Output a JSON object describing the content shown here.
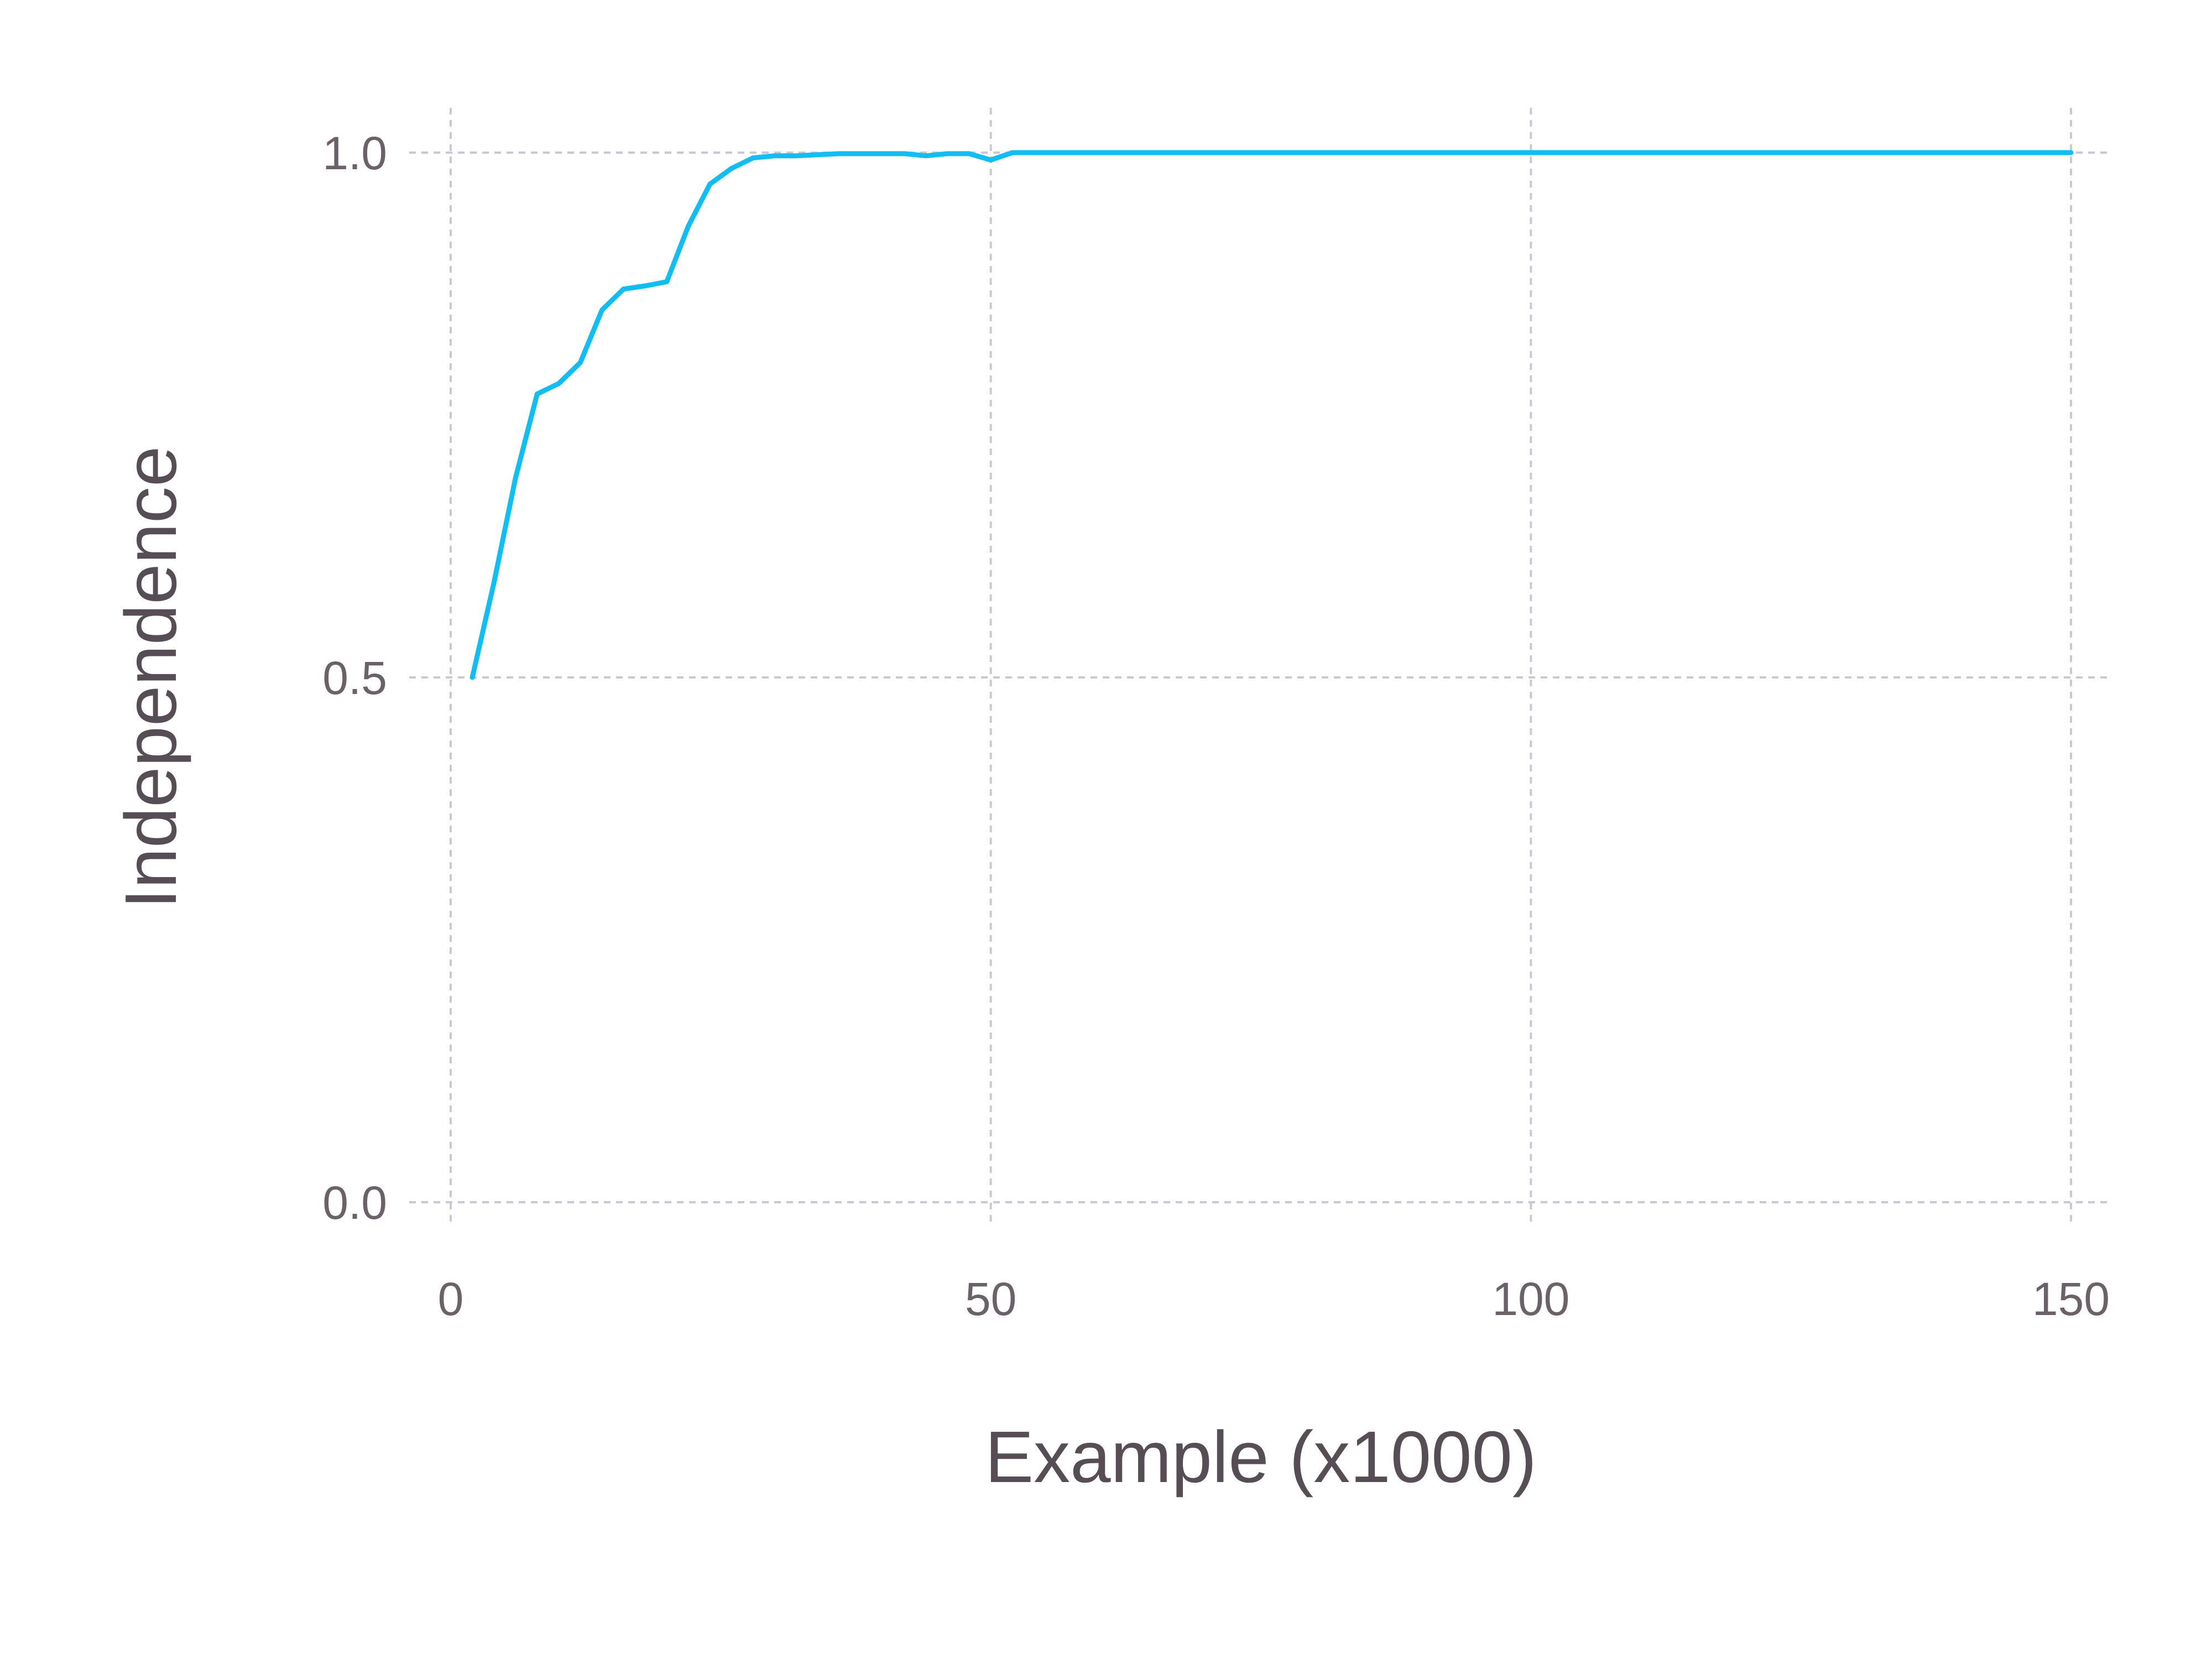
{
  "chart_data": {
    "type": "line",
    "title": "",
    "xlabel": "Example (x1000)",
    "ylabel": "Independence",
    "xlim": [
      0,
      150
    ],
    "ylim": [
      0,
      1
    ],
    "x_ticks": [
      0,
      50,
      100,
      150
    ],
    "y_ticks": [
      0.0,
      0.5,
      1.0
    ],
    "x_tick_labels": [
      "0",
      "50",
      "100",
      "150"
    ],
    "y_tick_labels": [
      "0.0",
      "0.5",
      "1.0"
    ],
    "grid": true,
    "legend": "none",
    "colors": {
      "series": "#12bdf2",
      "grid": "#c9c9d6",
      "tick_text": "#6b6169",
      "axis_title": "#574d55"
    },
    "series": [
      {
        "x": [
          2,
          4,
          6,
          8,
          10,
          12,
          14,
          16,
          18,
          20,
          22,
          24,
          26,
          28,
          30,
          32,
          34,
          36,
          38,
          40,
          42,
          44,
          46,
          48,
          50,
          52,
          54,
          56,
          58,
          60,
          70,
          80,
          90,
          100,
          110,
          120,
          130,
          140,
          150
        ],
        "y": [
          0.5,
          0.59,
          0.69,
          0.77,
          0.78,
          0.8,
          0.85,
          0.87,
          0.873,
          0.877,
          0.93,
          0.97,
          0.985,
          0.995,
          0.997,
          0.997,
          0.998,
          0.999,
          0.999,
          0.999,
          0.999,
          0.997,
          0.999,
          0.999,
          0.993,
          1.0,
          1.0,
          1.0,
          1.0,
          1.0,
          1.0,
          1.0,
          1.0,
          1.0,
          1.0,
          1.0,
          1.0,
          1.0,
          1.0
        ]
      }
    ]
  }
}
